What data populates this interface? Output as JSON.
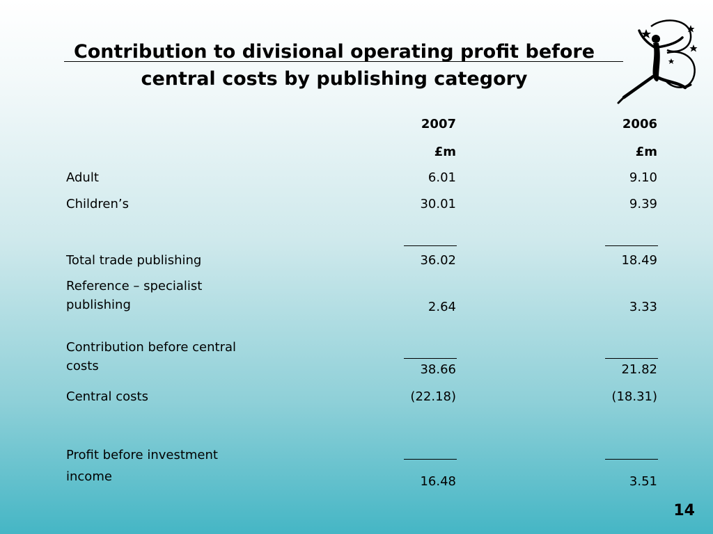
{
  "title": "Contribution to divisional operating profit before central costs by publishing category",
  "header": {
    "year_2007": "2007",
    "year_2006": "2006",
    "unit_2007": "£m",
    "unit_2006": "£m"
  },
  "rows": [
    {
      "label": "Adult",
      "v2007": "6.01",
      "v2006": "9.10"
    },
    {
      "label": "Children’s",
      "v2007": "30.01",
      "v2006": "9.39"
    },
    {
      "label": "Total trade publishing",
      "v2007": "36.02",
      "v2006": "18.49"
    },
    {
      "label": "Reference – specialist publishing",
      "v2007": "2.64",
      "v2006": "3.33"
    },
    {
      "label": "Contribution before central costs",
      "v2007": "38.66",
      "v2006": "21.82"
    },
    {
      "label": "Central costs",
      "v2007": "(22.18)",
      "v2006": "(18.31)"
    },
    {
      "label": "Profit before investment income",
      "v2007": "16.48",
      "v2006": "3.51"
    }
  ],
  "page_number": "14",
  "logo_icon": "dancing-figure-logo-icon"
}
